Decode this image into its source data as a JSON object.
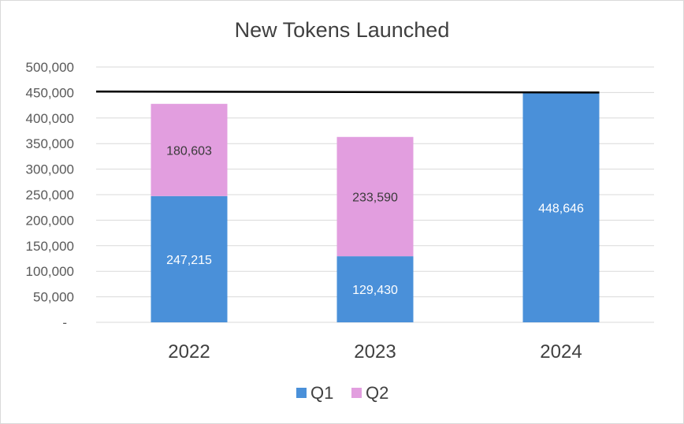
{
  "chart_data": {
    "type": "bar",
    "stacked": true,
    "title": "New Tokens Launched",
    "categories": [
      "2022",
      "2023",
      "2024"
    ],
    "series": [
      {
        "name": "Q1",
        "color": "#4a90d9",
        "values": [
          247215,
          129430,
          448646
        ],
        "labels": [
          "247,215",
          "129,430",
          "448,646"
        ],
        "label_color": "#ffffff"
      },
      {
        "name": "Q2",
        "color": "#e29edf",
        "values": [
          180603,
          233590,
          null
        ],
        "labels": [
          "180,603",
          "233,590",
          ""
        ],
        "label_color": "#3a3a3a"
      }
    ],
    "reference_line": {
      "from": 452000,
      "to": 450000,
      "color": "#000000"
    },
    "ylim": [
      0,
      500000
    ],
    "yticks": [
      0,
      50000,
      100000,
      150000,
      200000,
      250000,
      300000,
      350000,
      400000,
      450000,
      500000
    ],
    "ytick_labels": [
      "-",
      "50,000",
      "100,000",
      "150,000",
      "200,000",
      "250,000",
      "300,000",
      "350,000",
      "400,000",
      "450,000",
      "500,000"
    ],
    "grid": true,
    "legend_position": "bottom"
  }
}
